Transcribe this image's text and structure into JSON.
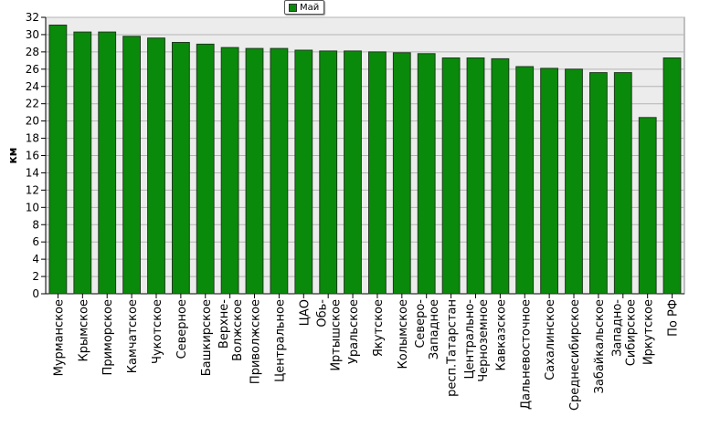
{
  "chart_data": {
    "type": "bar",
    "title": "",
    "xlabel": "",
    "ylabel": "км",
    "ylim": [
      0,
      32
    ],
    "ytick_step": 2,
    "grid": true,
    "legend_position": "top-center",
    "series": [
      {
        "name": "Май",
        "color": "#0a8a0a",
        "values": [
          31.1,
          30.3,
          30.3,
          29.8,
          29.6,
          29.1,
          28.9,
          28.5,
          28.4,
          28.4,
          28.2,
          28.1,
          28.1,
          28.0,
          27.9,
          27.8,
          27.3,
          27.3,
          27.2,
          26.3,
          26.1,
          26.0,
          25.6,
          25.6,
          20.4,
          27.3
        ]
      }
    ],
    "categories": [
      [
        "Мурманское"
      ],
      [
        "Крымское"
      ],
      [
        "Приморское"
      ],
      [
        "Камчатское"
      ],
      [
        "Чукотское"
      ],
      [
        "Северное"
      ],
      [
        "Башкирское"
      ],
      [
        "Верхне-",
        "Волжское"
      ],
      [
        "Приволжское"
      ],
      [
        "Центральное"
      ],
      [
        "ЦАО"
      ],
      [
        "Обь-",
        "Иртышское"
      ],
      [
        "Уральское"
      ],
      [
        "Якутское"
      ],
      [
        "Колымское"
      ],
      [
        "Северо-",
        "Западное"
      ],
      [
        "респ.Татарстан"
      ],
      [
        "Центрально-",
        "Черноземное"
      ],
      [
        "Кавказское"
      ],
      [
        "Дальневосточное"
      ],
      [
        "Сахалинское"
      ],
      [
        "Среднесибирское"
      ],
      [
        "Забайкальское"
      ],
      [
        "Западно-",
        "Сибирское"
      ],
      [
        "Иркутское"
      ],
      [
        "По РФ"
      ]
    ],
    "colors": {
      "plot_bg": "#ececec",
      "grid": "#b4b4b4",
      "bar": "#0a8a0a",
      "bar_edge": "#1e3a1e"
    }
  }
}
